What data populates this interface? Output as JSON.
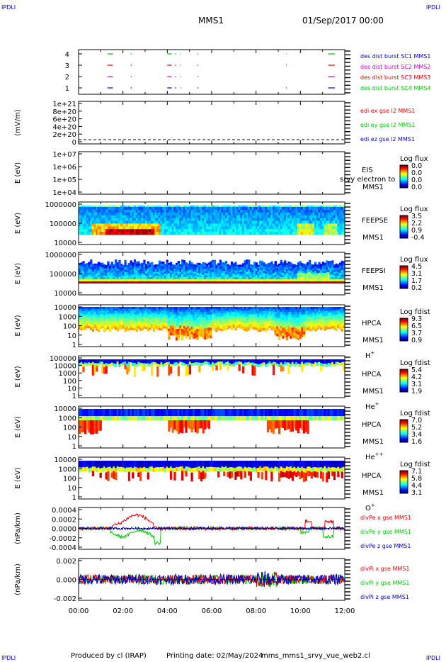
{
  "header": {
    "corner_label": "IPDLI",
    "spacecraft": "MMS1",
    "datetime": "01/Sep/2017 00:00"
  },
  "footer": {
    "produced_by": "Produced by cl (IRAP)",
    "printing_date": "Printing date: 02/May/2024",
    "filename": "mms_mms1_srvy_vue_web2.cl"
  },
  "colors": {
    "red": "#e00000",
    "green": "#00c800",
    "blue": "#0000c8",
    "magenta": "#cc00cc",
    "text_blue": "#0000aa"
  },
  "chart_data": [
    {
      "type": "scatter",
      "id": "burst",
      "yticks": [
        "4",
        "3",
        "2",
        "1"
      ],
      "legend": [
        {
          "label": "des dist burst SC1 MMS1",
          "color": "#0000c8"
        },
        {
          "label": "des dist burst SC2 MMS2",
          "color": "#cc00cc"
        },
        {
          "label": "des dist burst SC3 MMS3",
          "color": "#e00000"
        },
        {
          "label": "des dist burst SC4 MMS4",
          "color": "#00c800"
        }
      ],
      "series": [
        {
          "level": 4,
          "color": "#00c800",
          "segments": [
            [
              1.3,
              1.55
            ],
            [
              2.35,
              2.4
            ],
            [
              4.0,
              4.2
            ],
            [
              4.35,
              4.4
            ],
            [
              4.6,
              4.63
            ],
            [
              5.35,
              5.4
            ],
            [
              9.35,
              9.38
            ],
            [
              11.25,
              11.55
            ]
          ]
        },
        {
          "level": 3,
          "color": "#e00000",
          "segments": [
            [
              1.3,
              1.55
            ],
            [
              2.35,
              2.4
            ],
            [
              4.0,
              4.2
            ],
            [
              4.35,
              4.4
            ],
            [
              4.6,
              4.63
            ],
            [
              5.35,
              5.4
            ],
            [
              9.35,
              9.38
            ],
            [
              11.25,
              11.55
            ]
          ]
        },
        {
          "level": 2,
          "color": "#cc00cc",
          "segments": [
            [
              1.3,
              1.55
            ],
            [
              2.35,
              2.4
            ],
            [
              4.0,
              4.2
            ],
            [
              4.35,
              4.4
            ],
            [
              4.6,
              4.63
            ],
            [
              5.35,
              5.4
            ],
            [
              11.25,
              11.55
            ]
          ]
        },
        {
          "level": 1,
          "color": "#0000c8",
          "segments": [
            [
              1.3,
              1.55
            ],
            [
              2.35,
              2.4
            ],
            [
              4.0,
              4.2
            ],
            [
              4.35,
              4.4
            ],
            [
              4.6,
              4.63
            ],
            [
              5.35,
              5.4
            ],
            [
              9.35,
              9.38
            ],
            [
              11.25,
              11.55
            ]
          ]
        }
      ]
    },
    {
      "type": "line",
      "id": "edi",
      "ylabel": "(mV/m)",
      "yticks": [
        "1e+21",
        "8e+20",
        "6e+20",
        "4e+20",
        "2e+20",
        "0"
      ],
      "legend": [
        {
          "label": "edi ex gse l2 MMS1",
          "color": "#e00000"
        },
        {
          "label": "edi ey gse l2 MMS1",
          "color": "#00c800"
        },
        {
          "label": "edi ez gse l2 MMS1",
          "color": "#0000c8"
        }
      ]
    },
    {
      "type": "heatmap",
      "id": "eis",
      "ylabel": "E (eV)",
      "yticks": [
        "1e+07",
        "1e+06",
        "1e+05",
        "1e+04"
      ],
      "instrument": "EIS",
      "spacecraft": "MMS1",
      "overlay_label": "srvy electron to",
      "colorbar_title": "Log flux",
      "colorbar_ticks": [
        "0.0",
        "0.0",
        "0.0",
        "0.0"
      ]
    },
    {
      "type": "heatmap",
      "id": "feepse",
      "ylabel": "E (eV)",
      "yticks": [
        "1000000",
        "100000",
        "10000"
      ],
      "instrument": "FEEPSE",
      "spacecraft": "MMS1",
      "colorbar_title": "Log flux",
      "colorbar_ticks": [
        "3.5",
        "2.2",
        "0.9",
        "-0.4"
      ]
    },
    {
      "type": "heatmap",
      "id": "feepsi",
      "ylabel": "E (eV)",
      "yticks": [
        "1000000",
        "100000",
        "10000"
      ],
      "instrument": "FEEPSI",
      "spacecraft": "MMS1",
      "colorbar_title": "Log flux",
      "colorbar_ticks": [
        "4.5",
        "3.1",
        "1.7",
        "0.2"
      ]
    },
    {
      "type": "heatmap",
      "id": "hpca_h",
      "ylabel": "E (eV)",
      "yticks": [
        "10000",
        "1000",
        "100",
        "10",
        "1"
      ],
      "instrument": "HPCA",
      "spacecraft": "MMS1",
      "species": "H",
      "species_charge": "+",
      "colorbar_title": "Log fdist",
      "colorbar_ticks": [
        "9.3",
        "6.5",
        "3.7",
        "0.9"
      ]
    },
    {
      "type": "heatmap",
      "id": "hpca_he",
      "ylabel": "E (eV)",
      "yticks": [
        "100000",
        "10000",
        "1000",
        "100",
        "10",
        "1"
      ],
      "instrument": "HPCA",
      "spacecraft": "MMS1",
      "species": "He",
      "species_charge": "+",
      "colorbar_title": "Log fdist",
      "colorbar_ticks": [
        "5.4",
        "4.2",
        "3.1",
        "1.9"
      ]
    },
    {
      "type": "heatmap",
      "id": "hpca_hepp",
      "ylabel": "E (eV)",
      "yticks": [
        "10000",
        "1000",
        "100",
        "10",
        "1"
      ],
      "instrument": "HPCA",
      "spacecraft": "MMS1",
      "species": "He",
      "species_charge": "++",
      "colorbar_title": "Log fdist",
      "colorbar_ticks": [
        "7.0",
        "5.2",
        "3.4",
        "1.6"
      ]
    },
    {
      "type": "heatmap",
      "id": "hpca_o",
      "ylabel": "E (eV)",
      "yticks": [
        "10000",
        "1000",
        "100",
        "10",
        "1"
      ],
      "instrument": "HPCA",
      "spacecraft": "MMS1",
      "species": "O",
      "species_charge": "+",
      "colorbar_title": "Log fdist",
      "colorbar_ticks": [
        "7.1",
        "5.8",
        "4.4",
        "3.1"
      ]
    },
    {
      "type": "line",
      "id": "divpe",
      "ylabel": "(nPa/km)",
      "yticks": [
        "0.0004",
        "0.0002",
        "0.0000",
        "-0.0002",
        "-0.0004"
      ],
      "ylim": [
        -0.0005,
        0.0005
      ],
      "legend": [
        {
          "label": "divPe x gse MMS1",
          "color": "#e00000"
        },
        {
          "label": "divPe y gse MMS1",
          "color": "#00c800"
        },
        {
          "label": "divPe z gse MMS1",
          "color": "#0000c8"
        }
      ]
    },
    {
      "type": "line",
      "id": "divpi",
      "ylabel": "(nPa/km)",
      "yticks": [
        "0.002",
        "0.000",
        "-0.002"
      ],
      "ylim": [
        -0.0035,
        0.0035
      ],
      "legend": [
        {
          "label": "divPi x gse MMS1",
          "color": "#e00000"
        },
        {
          "label": "divPi y gse MMS1",
          "color": "#00c800"
        },
        {
          "label": "divPi z gse MMS1",
          "color": "#0000c8"
        }
      ]
    }
  ],
  "xaxis": {
    "xlim": [
      0,
      12
    ],
    "ticks": [
      "00:00",
      "02:00",
      "04:00",
      "06:00",
      "08:00",
      "10:00",
      "12:00"
    ]
  }
}
